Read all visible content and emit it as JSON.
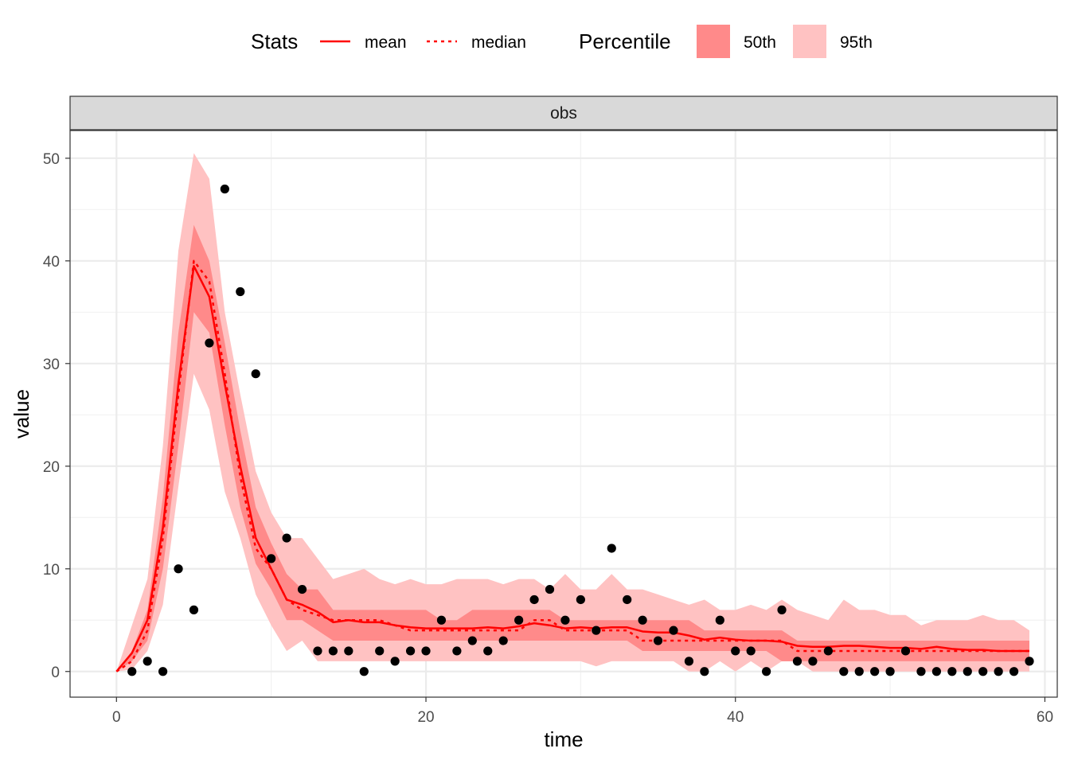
{
  "chart_data": {
    "type": "line",
    "facet": "obs",
    "xlabel": "time",
    "ylabel": "value",
    "xlim": [
      -3,
      60.8
    ],
    "ylim": [
      -2.5,
      52.7
    ],
    "x_ticks": [
      0,
      20,
      40,
      60
    ],
    "y_ticks": [
      0,
      10,
      20,
      30,
      40,
      50
    ],
    "grid": true,
    "legend_position": "top",
    "legend": {
      "stats_title": "Stats",
      "stats_items": [
        {
          "label": "mean",
          "style": "solid"
        },
        {
          "label": "median",
          "style": "dotted"
        }
      ],
      "percentile_title": "Percentile",
      "percentile_items": [
        {
          "label": "50th",
          "color": "#ff8a8a"
        },
        {
          "label": "95th",
          "color": "#ffc2c2"
        }
      ]
    },
    "colors": {
      "line": "#ff0000",
      "band50": "#ff8a8a",
      "band95": "#ffc2c2",
      "points": "#000000",
      "strip_bg": "#d9d9d9"
    },
    "time": [
      0,
      1,
      2,
      3,
      4,
      5,
      6,
      7,
      8,
      9,
      10,
      11,
      12,
      13,
      14,
      15,
      16,
      17,
      18,
      19,
      20,
      21,
      22,
      23,
      24,
      25,
      26,
      27,
      28,
      29,
      30,
      31,
      32,
      33,
      34,
      35,
      36,
      37,
      38,
      39,
      40,
      41,
      42,
      43,
      44,
      45,
      46,
      47,
      48,
      49,
      50,
      51,
      52,
      53,
      54,
      55,
      56,
      57,
      58,
      59
    ],
    "series": [
      {
        "name": "mean",
        "values": [
          0,
          1.8,
          5,
          14,
          28,
          39.5,
          36.5,
          28,
          20,
          13,
          10,
          7,
          6.5,
          5.8,
          4.8,
          5,
          4.8,
          4.8,
          4.5,
          4.3,
          4.2,
          4.2,
          4.2,
          4.2,
          4.3,
          4.2,
          4.4,
          4.7,
          4.5,
          4.2,
          4.3,
          4.2,
          4.3,
          4.3,
          3.9,
          3.8,
          3.8,
          3.5,
          3.1,
          3.3,
          3.1,
          3,
          3,
          2.9,
          2.5,
          2.4,
          2.4,
          2.5,
          2.5,
          2.4,
          2.3,
          2.3,
          2.2,
          2.4,
          2.2,
          2.1,
          2.1,
          2,
          2,
          2
        ]
      },
      {
        "name": "median",
        "values": [
          0,
          1,
          4,
          13,
          27,
          40,
          38,
          29,
          19,
          12,
          10,
          7,
          6,
          5.5,
          5,
          5,
          5,
          5,
          4.5,
          4,
          4,
          4,
          4,
          4,
          4,
          4,
          4,
          5,
          5,
          4,
          4,
          4,
          4,
          4,
          3,
          3,
          3,
          3,
          3,
          3,
          3,
          3,
          3,
          3,
          2,
          2,
          2,
          2,
          2,
          2,
          2,
          2,
          2,
          2,
          2,
          2,
          2,
          2,
          2,
          2
        ]
      }
    ],
    "bands": [
      {
        "name": "95th",
        "lower": [
          0,
          0.2,
          2,
          6.5,
          18,
          29,
          25.5,
          17.5,
          13,
          7.5,
          4.5,
          2,
          3,
          1,
          1,
          1,
          1,
          1,
          1,
          1,
          1,
          1,
          1,
          1,
          1,
          1,
          1,
          1,
          1,
          1,
          1,
          0.5,
          1,
          1,
          1,
          1,
          1,
          0,
          0,
          1,
          0,
          1,
          0,
          1,
          1,
          0,
          0,
          0,
          0,
          0,
          0,
          0,
          0,
          0,
          0,
          0,
          0,
          0,
          0,
          0
        ],
        "upper": [
          0,
          4.5,
          9,
          22,
          41,
          50.5,
          48,
          35,
          27,
          19.5,
          15.5,
          13,
          13,
          11,
          9,
          9.5,
          10,
          9,
          8.5,
          9,
          8.5,
          8.5,
          9,
          9,
          9,
          8.5,
          9,
          9,
          8,
          9.5,
          8,
          8,
          9.5,
          8,
          8,
          7.5,
          7,
          6.5,
          7,
          6,
          6,
          6.5,
          6,
          7,
          6,
          5.5,
          5,
          7,
          6,
          6,
          5.5,
          5.5,
          4.5,
          5,
          5,
          5,
          5.5,
          5,
          5,
          4
        ]
      },
      {
        "name": "50th",
        "lower": [
          0,
          1,
          3,
          10,
          22,
          35,
          33,
          24,
          16,
          10.5,
          8,
          5,
          5,
          4,
          3,
          3,
          3,
          3,
          3,
          3,
          3,
          3,
          3,
          3,
          3,
          3,
          3,
          3,
          3,
          3,
          3,
          3,
          3,
          3,
          2,
          2,
          2,
          2,
          2,
          2,
          2,
          2,
          2,
          1,
          1,
          1,
          1,
          1,
          1,
          1,
          1,
          1,
          1,
          1,
          1,
          1,
          1,
          1,
          1,
          1
        ],
        "upper": [
          0,
          2,
          6,
          17,
          33,
          43.5,
          40,
          32,
          23.5,
          16,
          12.5,
          9.5,
          8,
          8,
          6,
          6,
          6,
          6,
          6,
          6,
          6,
          5,
          5,
          6,
          6,
          6,
          6,
          6,
          6,
          5,
          5,
          5,
          5,
          5,
          5,
          5,
          5,
          5,
          4,
          4,
          4,
          4,
          4,
          4,
          3,
          3,
          3,
          3,
          3,
          3,
          3,
          3,
          3,
          3,
          3,
          3,
          3,
          3,
          3,
          3
        ]
      }
    ],
    "observations": {
      "x": [
        1,
        2,
        3,
        4,
        5,
        6,
        7,
        8,
        9,
        10,
        11,
        12,
        13,
        14,
        15,
        16,
        17,
        18,
        19,
        20,
        21,
        22,
        23,
        24,
        25,
        26,
        27,
        28,
        29,
        30,
        31,
        32,
        33,
        34,
        35,
        36,
        37,
        38,
        39,
        40,
        41,
        42,
        43,
        44,
        45,
        46,
        47,
        48,
        49,
        50,
        51,
        52,
        53,
        54,
        55,
        56,
        57,
        58,
        59
      ],
      "y": [
        0,
        1,
        0,
        10,
        6,
        32,
        47,
        37,
        29,
        11,
        13,
        8,
        2,
        2,
        2,
        0,
        2,
        1,
        2,
        2,
        5,
        2,
        3,
        2,
        3,
        5,
        7,
        8,
        5,
        7,
        4,
        12,
        7,
        5,
        3,
        4,
        1,
        0,
        5,
        2,
        2,
        0,
        6,
        1,
        1,
        2,
        0,
        0,
        0,
        0,
        2,
        0,
        0,
        0,
        0,
        0,
        0,
        0,
        1
      ]
    }
  }
}
